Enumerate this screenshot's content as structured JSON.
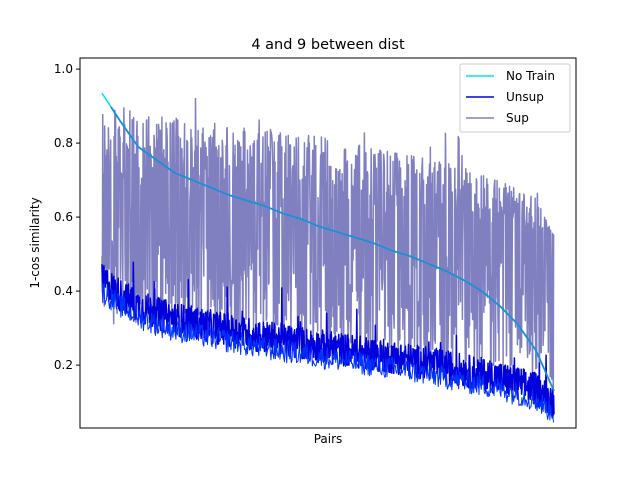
{
  "chart_data": {
    "type": "line",
    "title": "4 and 9 between dist",
    "xlabel": "Pairs",
    "ylabel": "1-cos similarity",
    "ylim": [
      0.03,
      1.03
    ],
    "yticks": [
      0.2,
      0.4,
      0.6,
      0.8,
      1.0
    ],
    "ytick_labels": [
      "0.2",
      "0.4",
      "0.6",
      "0.8",
      "1.0"
    ],
    "xticks_visible": false,
    "grid": false,
    "legend": "top-right",
    "n_points": 1200,
    "series": [
      {
        "name": "No Train",
        "color": "#00e5ee",
        "profile_y": [
          0.935,
          0.86,
          0.79,
          0.755,
          0.72,
          0.7,
          0.68,
          0.66,
          0.645,
          0.63,
          0.61,
          0.595,
          0.575,
          0.56,
          0.545,
          0.53,
          0.51,
          0.495,
          0.475,
          0.455,
          0.43,
          0.4,
          0.36,
          0.31,
          0.24,
          0.13
        ]
      },
      {
        "name": "Unsup",
        "color": "#0000dd",
        "mean_y": [
          0.43,
          0.39,
          0.36,
          0.34,
          0.325,
          0.315,
          0.305,
          0.295,
          0.285,
          0.275,
          0.268,
          0.26,
          0.252,
          0.245,
          0.237,
          0.23,
          0.222,
          0.214,
          0.205,
          0.196,
          0.186,
          0.176,
          0.165,
          0.152,
          0.135,
          0.1
        ],
        "noise_y": 0.045
      },
      {
        "name": "Sup",
        "color": "#8080c0",
        "mean_y": [
          0.62,
          0.66,
          0.66,
          0.65,
          0.645,
          0.64,
          0.635,
          0.63,
          0.625,
          0.62,
          0.615,
          0.61,
          0.605,
          0.6,
          0.595,
          0.59,
          0.585,
          0.58,
          0.575,
          0.57,
          0.565,
          0.56,
          0.555,
          0.55,
          0.545,
          0.55
        ],
        "upper_y": [
          0.9,
          0.9,
          0.89,
          0.88,
          0.87,
          0.86,
          0.855,
          0.85,
          0.845,
          0.84,
          0.835,
          0.83,
          0.82,
          0.81,
          0.8,
          0.79,
          0.78,
          0.77,
          0.76,
          0.75,
          0.74,
          0.72,
          0.7,
          0.68,
          0.65,
          0.55
        ],
        "lower_y": [
          0.33,
          0.3,
          0.29,
          0.28,
          0.275,
          0.27,
          0.265,
          0.26,
          0.255,
          0.25,
          0.245,
          0.24,
          0.235,
          0.23,
          0.225,
          0.22,
          0.215,
          0.21,
          0.205,
          0.2,
          0.19,
          0.18,
          0.17,
          0.16,
          0.14,
          0.1
        ]
      }
    ]
  }
}
